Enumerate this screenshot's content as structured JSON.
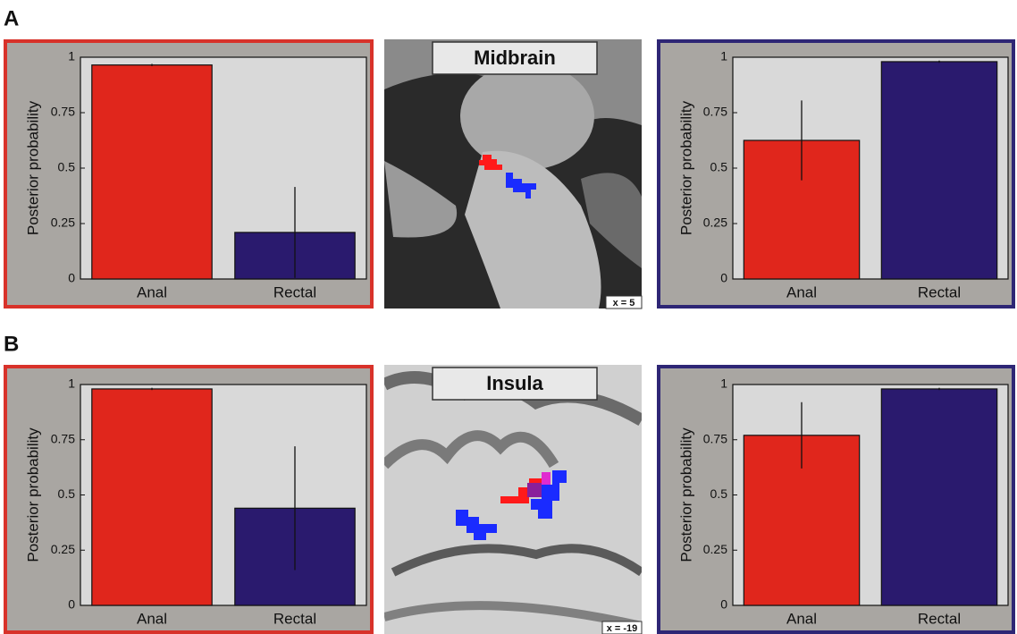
{
  "panels": [
    {
      "label": "A",
      "region": "Midbrain",
      "slice": "x = 5"
    },
    {
      "label": "B",
      "region": "Insula",
      "slice": "x = -19"
    }
  ],
  "chart_data": [
    {
      "type": "bar",
      "ylabel": "Posterior probability",
      "categories": [
        "Anal",
        "Rectal"
      ],
      "values": [
        0.965,
        0.21
      ],
      "errors": [
        0.005,
        0.205
      ],
      "colors": [
        "#e0261c",
        "#2a1a6e"
      ],
      "frame_color": "#d8322a",
      "ylim": [
        0,
        1
      ],
      "yticks": [
        0,
        0.25,
        0.5,
        0.75,
        1
      ]
    },
    {
      "type": "bar",
      "ylabel": "Posterior probability",
      "categories": [
        "Anal",
        "Rectal"
      ],
      "values": [
        0.625,
        0.98
      ],
      "errors": [
        0.18,
        0.005
      ],
      "colors": [
        "#e0261c",
        "#2a1a6e"
      ],
      "frame_color": "#2e2675",
      "ylim": [
        0,
        1
      ],
      "yticks": [
        0,
        0.25,
        0.5,
        0.75,
        1
      ]
    },
    {
      "type": "bar",
      "ylabel": "Posterior probability",
      "categories": [
        "Anal",
        "Rectal"
      ],
      "values": [
        0.98,
        0.44
      ],
      "errors": [
        0.005,
        0.28
      ],
      "colors": [
        "#e0261c",
        "#2a1a6e"
      ],
      "frame_color": "#d8322a",
      "ylim": [
        0,
        1
      ],
      "yticks": [
        0,
        0.25,
        0.5,
        0.75,
        1
      ]
    },
    {
      "type": "bar",
      "ylabel": "Posterior probability",
      "categories": [
        "Anal",
        "Rectal"
      ],
      "values": [
        0.77,
        0.98
      ],
      "errors": [
        0.15,
        0.005
      ],
      "colors": [
        "#e0261c",
        "#2a1a6e"
      ],
      "frame_color": "#2e2675",
      "ylim": [
        0,
        1
      ],
      "yticks": [
        0,
        0.25,
        0.5,
        0.75,
        1
      ]
    }
  ]
}
